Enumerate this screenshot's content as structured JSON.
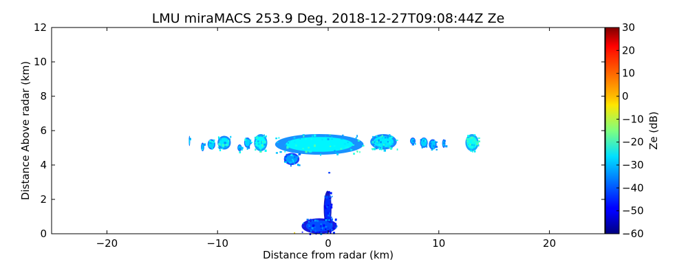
{
  "chart_data": {
    "type": "heatmap",
    "title": "LMU miraMACS 253.9 Deg. 2018-12-27T09:08:44Z  Ze",
    "xlabel": "Distance from radar (km)",
    "ylabel": "Distance Above radar  (km)",
    "xlim": [
      -25,
      25
    ],
    "ylim": [
      0,
      12
    ],
    "xticks": [
      -20,
      -10,
      0,
      10,
      20
    ],
    "xtick_labels": [
      "−20",
      "−10",
      "0",
      "10",
      "20"
    ],
    "yticks": [
      0,
      2,
      4,
      6,
      8,
      10,
      12
    ],
    "ytick_labels": [
      "0",
      "2",
      "4",
      "6",
      "8",
      "10",
      "12"
    ],
    "grid": false,
    "colorbar": {
      "label": "Ze (dB)",
      "colormap": "jet",
      "range": [
        -60,
        30
      ],
      "ticks": [
        -60,
        -50,
        -40,
        -30,
        -20,
        -10,
        0,
        10,
        20,
        30
      ],
      "tick_labels": [
        "−60",
        "−50",
        "−40",
        "−30",
        "−20",
        "−10",
        "0",
        "10",
        "20",
        "30"
      ]
    },
    "echoes": [
      {
        "xmin": -12.6,
        "xmax": -12.5,
        "ymin": 5.1,
        "ymax": 5.7,
        "ze": -30
      },
      {
        "xmin": -11.5,
        "xmax": -11.2,
        "ymin": 4.8,
        "ymax": 5.3,
        "ze": -32
      },
      {
        "xmin": -10.9,
        "xmax": -10.2,
        "ymin": 4.9,
        "ymax": 5.5,
        "ze": -30
      },
      {
        "xmin": -10.0,
        "xmax": -8.8,
        "ymin": 4.9,
        "ymax": 5.7,
        "ze": -28
      },
      {
        "xmin": -8.2,
        "xmax": -7.8,
        "ymin": 4.8,
        "ymax": 5.2,
        "ze": -32
      },
      {
        "xmin": -7.6,
        "xmax": -7.0,
        "ymin": 5.0,
        "ymax": 5.6,
        "ze": -30
      },
      {
        "xmin": -6.7,
        "xmax": -5.5,
        "ymin": 4.8,
        "ymax": 5.8,
        "ze": -26
      },
      {
        "xmin": -4.8,
        "xmax": 3.2,
        "ymin": 4.6,
        "ymax": 5.8,
        "ze": -27
      },
      {
        "xmin": -4.0,
        "xmax": -2.6,
        "ymin": 4.0,
        "ymax": 4.7,
        "ze": -35
      },
      {
        "xmin": 3.8,
        "xmax": 6.2,
        "ymin": 4.9,
        "ymax": 5.8,
        "ze": -28
      },
      {
        "xmin": 7.4,
        "xmax": 7.9,
        "ymin": 5.2,
        "ymax": 5.6,
        "ze": -32
      },
      {
        "xmin": 8.3,
        "xmax": 9.0,
        "ymin": 5.0,
        "ymax": 5.6,
        "ze": -30
      },
      {
        "xmin": 9.1,
        "xmax": 9.8,
        "ymin": 4.9,
        "ymax": 5.5,
        "ze": -31
      },
      {
        "xmin": 10.3,
        "xmax": 10.6,
        "ymin": 5.0,
        "ymax": 5.5,
        "ze": -32
      },
      {
        "xmin": 12.4,
        "xmax": 13.6,
        "ymin": 4.8,
        "ymax": 5.8,
        "ze": -25
      },
      {
        "xmin": 0.0,
        "xmax": 0.2,
        "ymin": 3.5,
        "ymax": 3.6,
        "ze": -40
      },
      {
        "xmin": -0.4,
        "xmax": 0.3,
        "ymin": 0.4,
        "ymax": 2.5,
        "ze": -45
      },
      {
        "xmin": -2.4,
        "xmax": 0.8,
        "ymin": 0.0,
        "ymax": 0.9,
        "ze": -42
      },
      {
        "xmin": -3.1,
        "xmax": -3.0,
        "ymin": 0.0,
        "ymax": 0.1,
        "ze": 2
      }
    ]
  }
}
